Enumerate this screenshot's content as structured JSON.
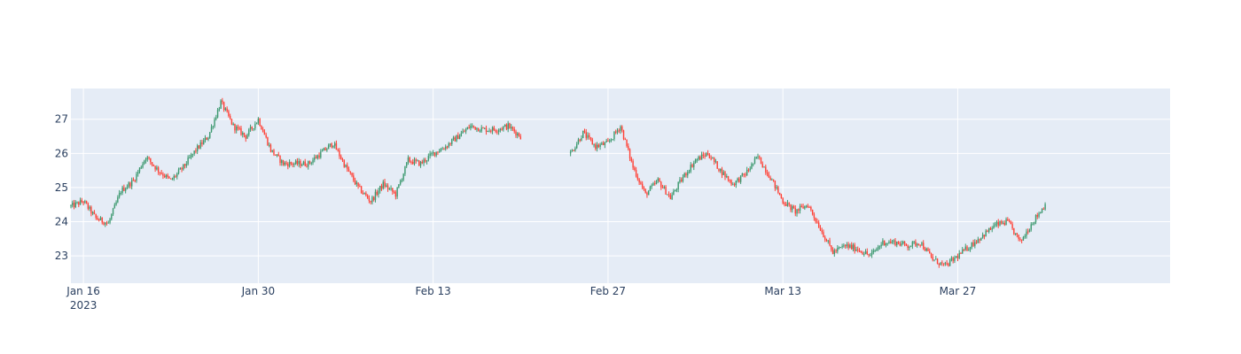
{
  "chart_data": {
    "type": "candlestick",
    "title": "",
    "xlabel": "",
    "ylabel": "",
    "ylim": [
      22.2,
      27.9
    ],
    "xlim": [
      "2023-01-15",
      "2023-04-13"
    ],
    "grid": true,
    "legend": "none",
    "x_ticks": [
      {
        "date": "2023-01-16",
        "label": "Jan 16",
        "sublabel": "2023"
      },
      {
        "date": "2023-01-30",
        "label": "Jan 30",
        "sublabel": ""
      },
      {
        "date": "2023-02-13",
        "label": "Feb 13",
        "sublabel": ""
      },
      {
        "date": "2023-02-27",
        "label": "Feb 27",
        "sublabel": ""
      },
      {
        "date": "2023-03-13",
        "label": "Mar 13",
        "sublabel": ""
      },
      {
        "date": "2023-03-27",
        "label": "Mar 27",
        "sublabel": ""
      }
    ],
    "y_ticks": [
      {
        "value": 23,
        "label": "23"
      },
      {
        "value": 24,
        "label": "24"
      },
      {
        "value": 25,
        "label": "25"
      },
      {
        "value": 26,
        "label": "26"
      },
      {
        "value": 27,
        "label": "27"
      }
    ],
    "colors": {
      "background": "#e5ecf6",
      "grid": "#ffffff",
      "increasing": "#3d9970",
      "decreasing": "#ff4136",
      "axis_text": "#2a3f5f"
    },
    "price_path": [
      {
        "date": "2023-01-15",
        "price": 24.45
      },
      {
        "date": "2023-01-16",
        "price": 24.6
      },
      {
        "date": "2023-01-17",
        "price": 24.1
      },
      {
        "date": "2023-01-18",
        "price": 23.95
      },
      {
        "date": "2023-01-19",
        "price": 24.9
      },
      {
        "date": "2023-01-20",
        "price": 25.2
      },
      {
        "date": "2023-01-21",
        "price": 25.9
      },
      {
        "date": "2023-01-22",
        "price": 25.5
      },
      {
        "date": "2023-01-23",
        "price": 25.2
      },
      {
        "date": "2023-01-24",
        "price": 25.6
      },
      {
        "date": "2023-01-25",
        "price": 26.1
      },
      {
        "date": "2023-01-26",
        "price": 26.5
      },
      {
        "date": "2023-01-27",
        "price": 27.5
      },
      {
        "date": "2023-01-28",
        "price": 26.8
      },
      {
        "date": "2023-01-29",
        "price": 26.5
      },
      {
        "date": "2023-01-30",
        "price": 27.0
      },
      {
        "date": "2023-01-31",
        "price": 26.1
      },
      {
        "date": "2023-02-01",
        "price": 25.7
      },
      {
        "date": "2023-02-02",
        "price": 25.7
      },
      {
        "date": "2023-02-03",
        "price": 25.7
      },
      {
        "date": "2023-02-04",
        "price": 26.0
      },
      {
        "date": "2023-02-05",
        "price": 26.3
      },
      {
        "date": "2023-02-06",
        "price": 25.6
      },
      {
        "date": "2023-02-07",
        "price": 25.0
      },
      {
        "date": "2023-02-08",
        "price": 24.6
      },
      {
        "date": "2023-02-09",
        "price": 25.1
      },
      {
        "date": "2023-02-10",
        "price": 24.8
      },
      {
        "date": "2023-02-11",
        "price": 25.8
      },
      {
        "date": "2023-02-12",
        "price": 25.7
      },
      {
        "date": "2023-02-13",
        "price": 26.0
      },
      {
        "date": "2023-02-14",
        "price": 26.2
      },
      {
        "date": "2023-02-15",
        "price": 26.5
      },
      {
        "date": "2023-02-16",
        "price": 26.8
      },
      {
        "date": "2023-02-17",
        "price": 26.7
      },
      {
        "date": "2023-02-18",
        "price": 26.7
      },
      {
        "date": "2023-02-19",
        "price": 26.8
      },
      {
        "date": "2023-02-20",
        "price": 26.5
      }
    ],
    "price_path_2": [
      {
        "date": "2023-02-24",
        "price": 26.0
      },
      {
        "date": "2023-02-25",
        "price": 26.6
      },
      {
        "date": "2023-02-26",
        "price": 26.2
      },
      {
        "date": "2023-02-27",
        "price": 26.3
      },
      {
        "date": "2023-02-28",
        "price": 26.8
      },
      {
        "date": "2023-03-01",
        "price": 25.6
      },
      {
        "date": "2023-03-02",
        "price": 24.8
      },
      {
        "date": "2023-03-03",
        "price": 25.2
      },
      {
        "date": "2023-03-04",
        "price": 24.7
      },
      {
        "date": "2023-03-05",
        "price": 25.3
      },
      {
        "date": "2023-03-06",
        "price": 25.8
      },
      {
        "date": "2023-03-07",
        "price": 26.0
      },
      {
        "date": "2023-03-08",
        "price": 25.5
      },
      {
        "date": "2023-03-09",
        "price": 25.1
      },
      {
        "date": "2023-03-10",
        "price": 25.4
      },
      {
        "date": "2023-03-11",
        "price": 25.9
      },
      {
        "date": "2023-03-12",
        "price": 25.3
      },
      {
        "date": "2023-03-13",
        "price": 24.6
      },
      {
        "date": "2023-03-14",
        "price": 24.3
      },
      {
        "date": "2023-03-15",
        "price": 24.5
      },
      {
        "date": "2023-03-16",
        "price": 23.8
      },
      {
        "date": "2023-03-17",
        "price": 23.1
      },
      {
        "date": "2023-03-18",
        "price": 23.3
      },
      {
        "date": "2023-03-19",
        "price": 23.2
      },
      {
        "date": "2023-03-20",
        "price": 23.0
      },
      {
        "date": "2023-03-21",
        "price": 23.4
      },
      {
        "date": "2023-03-22",
        "price": 23.4
      },
      {
        "date": "2023-03-23",
        "price": 23.3
      },
      {
        "date": "2023-03-24",
        "price": 23.4
      },
      {
        "date": "2023-03-25",
        "price": 22.9
      },
      {
        "date": "2023-03-26",
        "price": 22.7
      },
      {
        "date": "2023-03-27",
        "price": 23.0
      },
      {
        "date": "2023-03-28",
        "price": 23.3
      },
      {
        "date": "2023-03-29",
        "price": 23.6
      },
      {
        "date": "2023-03-30",
        "price": 23.9
      },
      {
        "date": "2023-03-31",
        "price": 24.0
      },
      {
        "date": "2023-04-01",
        "price": 23.4
      },
      {
        "date": "2023-04-02",
        "price": 24.0
      },
      {
        "date": "2023-04-03",
        "price": 24.5
      }
    ]
  }
}
